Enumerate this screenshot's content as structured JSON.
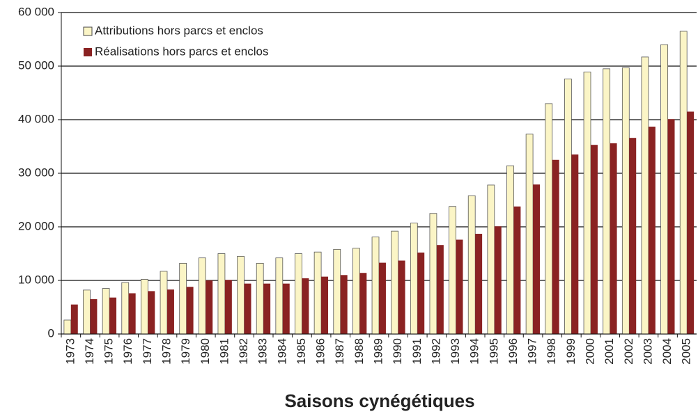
{
  "chart_data": {
    "type": "bar",
    "x_label": "Saisons cynégétiques",
    "categories": [
      "1973",
      "1974",
      "1975",
      "1976",
      "1977",
      "1978",
      "1979",
      "1980",
      "1981",
      "1982",
      "1983",
      "1984",
      "1985",
      "1986",
      "1987",
      "1988",
      "1989",
      "1990",
      "1991",
      "1992",
      "1993",
      "1994",
      "1995",
      "1996",
      "1997",
      "1998",
      "1999",
      "2000",
      "2001",
      "2002",
      "2003",
      "2004",
      "2005"
    ],
    "series": [
      {
        "name": "Attributions hors parcs et enclos",
        "color": "#fbf5c6",
        "values": [
          2600,
          8200,
          8500,
          9600,
          10200,
          11700,
          13200,
          14200,
          15000,
          14500,
          13200,
          14200,
          15000,
          15300,
          15800,
          16000,
          18100,
          19200,
          20700,
          22500,
          23800,
          25800,
          27800,
          31400,
          37300,
          43000,
          47600,
          48900,
          49500,
          49700,
          51700,
          54000,
          56500
        ]
      },
      {
        "name": "Réalisations hors parcs et enclos",
        "color": "#8a2222",
        "values": [
          5500,
          6500,
          6800,
          7600,
          8000,
          8300,
          8800,
          10000,
          10100,
          9400,
          9400,
          9400,
          10400,
          10700,
          11000,
          11400,
          13300,
          13700,
          15200,
          16600,
          17600,
          18700,
          20100,
          23800,
          27900,
          32500,
          33500,
          35300,
          35600,
          36600,
          38700,
          40100,
          41500
        ]
      }
    ],
    "ylim": [
      0,
      60000
    ],
    "yticks": [
      0,
      {
        "value": 10000,
        "label": "10 000"
      },
      {
        "value": 20000,
        "label": "20 000"
      },
      {
        "value": 30000,
        "label": "30 000"
      },
      {
        "value": 40000,
        "label": "40 000"
      },
      {
        "value": 50000,
        "label": "50 000"
      },
      {
        "value": 60000,
        "label": "60 000"
      }
    ],
    "grid": true,
    "legend": "upper left"
  }
}
